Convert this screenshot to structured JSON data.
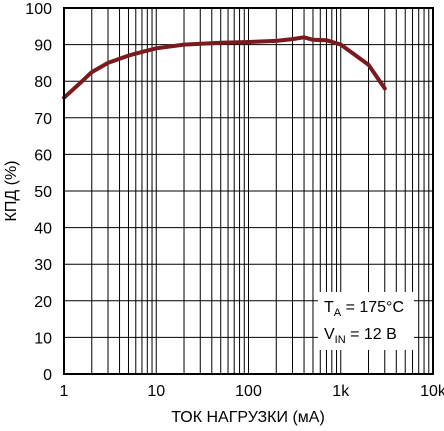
{
  "chart_data": {
    "type": "line",
    "xlabel": "ТОК НАГРУЗКИ (мА)",
    "ylabel": "КПД (%)",
    "x_scale": "log",
    "xlim": [
      1,
      10000
    ],
    "ylim": [
      0,
      100
    ],
    "x_ticks": [
      {
        "value": 1,
        "label": "1"
      },
      {
        "value": 10,
        "label": "10"
      },
      {
        "value": 100,
        "label": "100"
      },
      {
        "value": 1000,
        "label": "1k"
      },
      {
        "value": 10000,
        "label": "10k"
      }
    ],
    "y_ticks": [
      0,
      10,
      20,
      30,
      40,
      50,
      60,
      70,
      80,
      90,
      100
    ],
    "grid": true,
    "line_color": "#7a1a1e",
    "series": [
      {
        "x": [
          1,
          1.5,
          2,
          3,
          5,
          7,
          10,
          20,
          50,
          100,
          200,
          300,
          400,
          500,
          700,
          1000,
          2000,
          3000
        ],
        "y": [
          75.5,
          79.5,
          82.5,
          85,
          87,
          88,
          89,
          90,
          90.5,
          90.7,
          91,
          91.5,
          92,
          91.3,
          91.2,
          90,
          84.5,
          78
        ]
      }
    ],
    "annotations": [
      {
        "main": "T",
        "sub": "A",
        "rest": " = 175°C"
      },
      {
        "main": "V",
        "sub": "IN",
        "rest": " = 12 В"
      }
    ]
  }
}
